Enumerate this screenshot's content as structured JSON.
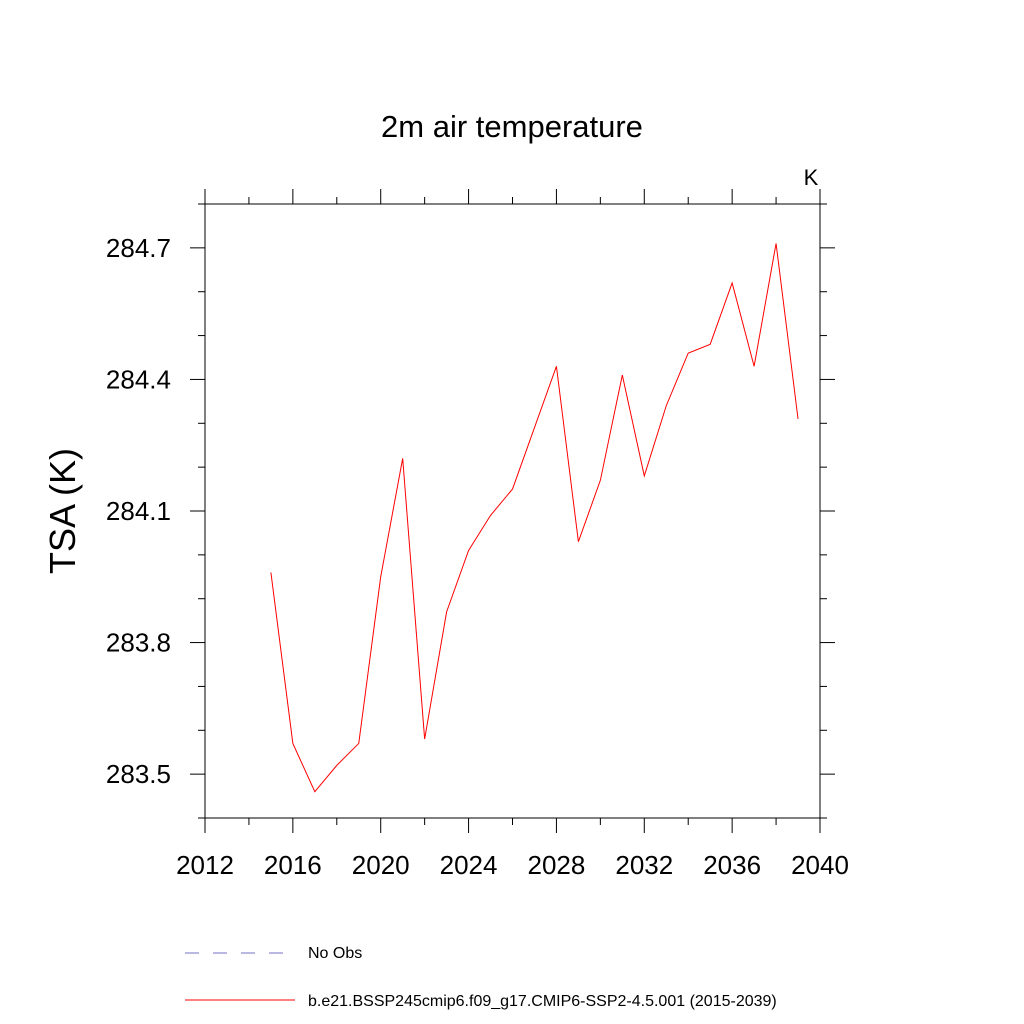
{
  "chart_data": {
    "type": "line",
    "title": "2m air temperature",
    "units_label": "K",
    "ylabel": "TSA  (K)",
    "xlabel": "",
    "xlim": [
      2012,
      2040
    ],
    "ylim": [
      283.4,
      284.8
    ],
    "x_ticks": [
      2012,
      2016,
      2020,
      2024,
      2028,
      2032,
      2036,
      2040
    ],
    "y_ticks": [
      283.5,
      283.8,
      284.1,
      284.4,
      284.7
    ],
    "y_tick_labels": [
      "283.5",
      "283.8",
      "284.1",
      "284.4",
      "284.7"
    ],
    "x_minor_step": 2,
    "y_minor_step": 0.1,
    "grid": false,
    "series": [
      {
        "name": "b.e21.BSSP245cmip6.f09_g17.CMIP6-SSP2-4.5.001 (2015-2039)",
        "color": "#ff0000",
        "x": [
          2015,
          2016,
          2017,
          2018,
          2019,
          2020,
          2021,
          2022,
          2023,
          2024,
          2025,
          2026,
          2027,
          2028,
          2029,
          2030,
          2031,
          2032,
          2033,
          2034,
          2035,
          2036,
          2037,
          2038,
          2039
        ],
        "y": [
          283.96,
          283.57,
          283.46,
          283.52,
          283.57,
          283.95,
          284.22,
          283.58,
          283.87,
          284.01,
          284.09,
          284.15,
          284.29,
          284.43,
          284.03,
          284.17,
          284.41,
          284.18,
          284.34,
          284.46,
          284.48,
          284.62,
          284.43,
          284.71,
          284.31
        ]
      }
    ],
    "legend": {
      "placement": "bottom-left",
      "entries": [
        {
          "label": "No Obs",
          "color": "#7070c0",
          "style": "dashed"
        },
        {
          "label": "b.e21.BSSP245cmip6.f09_g17.CMIP6-SSP2-4.5.001 (2015-2039)",
          "color": "#ff0000",
          "style": "solid"
        }
      ]
    }
  }
}
